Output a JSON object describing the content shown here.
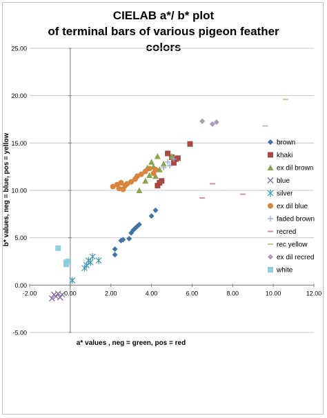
{
  "chart_data": {
    "type": "scatter",
    "title_lines": [
      "CIELAB  a*/ b* plot",
      "of terminal bars of various pigeon feather",
      "colors"
    ],
    "xlabel": "a* values  , neg = green, pos = red",
    "ylabel": "b* values, neg = blue, pos = yellow",
    "xlim": [
      -2.0,
      12.0
    ],
    "ylim": [
      -5.0,
      25.0
    ],
    "x_ticks": [
      "-2.00",
      "0.00",
      "2.00",
      "4.00",
      "6.00",
      "8.00",
      "10.00",
      "12.00"
    ],
    "y_ticks": [
      "25.00",
      "20.00",
      "15.00",
      "10.00",
      "5.00",
      "0.00",
      "-5.00"
    ],
    "x_tick_values": [
      -2,
      0,
      2,
      4,
      6,
      8,
      10,
      12
    ],
    "y_tick_values": [
      25,
      20,
      15,
      10,
      5,
      0,
      -5
    ],
    "grid": "horizontal",
    "legend_position": "right",
    "series": [
      {
        "name": "brown",
        "marker": "diamond",
        "color": "#4572A7",
        "x": [
          2.2,
          2.2,
          2.5,
          2.6,
          2.9,
          3.0,
          3.1,
          3.2,
          3.3,
          3.4,
          4.0,
          4.2
        ],
        "y": [
          3.2,
          3.8,
          4.7,
          4.8,
          4.9,
          5.5,
          5.8,
          6.0,
          6.2,
          6.4,
          7.3,
          7.9
        ]
      },
      {
        "name": "khaki",
        "marker": "square",
        "color": "#AA4643",
        "x": [
          4.3,
          4.4,
          4.5,
          4.8,
          5.0,
          5.1,
          5.2,
          5.3,
          5.9
        ],
        "y": [
          10.5,
          10.8,
          11.0,
          13.9,
          13.5,
          12.9,
          13.3,
          13.4,
          14.9
        ]
      },
      {
        "name": "ex dil brown",
        "marker": "triangle",
        "color": "#89A54E",
        "x": [
          3.4,
          3.7,
          3.8,
          3.9,
          4.0,
          4.1,
          4.2,
          4.3,
          4.4,
          4.6,
          5.0
        ],
        "y": [
          10.0,
          11.0,
          12.4,
          11.6,
          13.0,
          12.5,
          11.5,
          13.6,
          12.2,
          12.8,
          13.6
        ]
      },
      {
        "name": "blue",
        "marker": "x",
        "color": "#80699B",
        "x": [
          -0.9,
          -0.8,
          -0.7,
          -0.6,
          -0.5,
          -0.4
        ],
        "y": [
          -1.4,
          -1.0,
          -1.2,
          -0.9,
          -1.3,
          -1.0
        ]
      },
      {
        "name": "silver",
        "marker": "star",
        "color": "#3D96AE",
        "x": [
          0.1,
          0.7,
          0.8,
          0.9,
          1.0,
          1.1,
          1.4
        ],
        "y": [
          0.5,
          1.8,
          2.1,
          2.6,
          2.4,
          3.0,
          2.6
        ]
      },
      {
        "name": "ex dil blue",
        "marker": "circle",
        "color": "#DB843D",
        "x": [
          2.1,
          2.3,
          2.4,
          2.5,
          2.6,
          2.7,
          2.8,
          3.0,
          3.2,
          3.3,
          3.5,
          3.7,
          3.9,
          4.1,
          4.2
        ],
        "y": [
          10.4,
          10.6,
          10.2,
          10.8,
          10.1,
          10.5,
          10.7,
          10.9,
          11.2,
          11.5,
          11.7,
          12.0,
          12.3,
          11.8,
          12.2
        ]
      },
      {
        "name": "faded brown",
        "marker": "plus",
        "color": "#93A9CF",
        "x": [
          4.6,
          4.8,
          4.9,
          5.1
        ],
        "y": [
          12.4,
          13.0,
          12.6,
          13.3
        ]
      },
      {
        "name": "recred",
        "marker": "dash",
        "color": "#D19392",
        "x": [
          6.5,
          7.0,
          8.5
        ],
        "y": [
          9.2,
          10.7,
          9.6
        ]
      },
      {
        "name": "rec yellow",
        "marker": "dash",
        "color": "#B9CD96",
        "x": [
          9.6,
          10.6
        ],
        "y": [
          16.8,
          19.6
        ]
      },
      {
        "name": "ex dil recred",
        "marker": "diamond",
        "color": "#A99BBD",
        "x": [
          6.5,
          7.0,
          7.2
        ],
        "y": [
          17.3,
          17.0,
          17.2
        ]
      },
      {
        "name": "white",
        "marker": "square",
        "color": "#92CDDC",
        "x": [
          -0.6,
          -0.2,
          -0.2,
          -0.1
        ],
        "y": [
          3.9,
          2.4,
          2.2,
          2.5
        ]
      }
    ]
  }
}
